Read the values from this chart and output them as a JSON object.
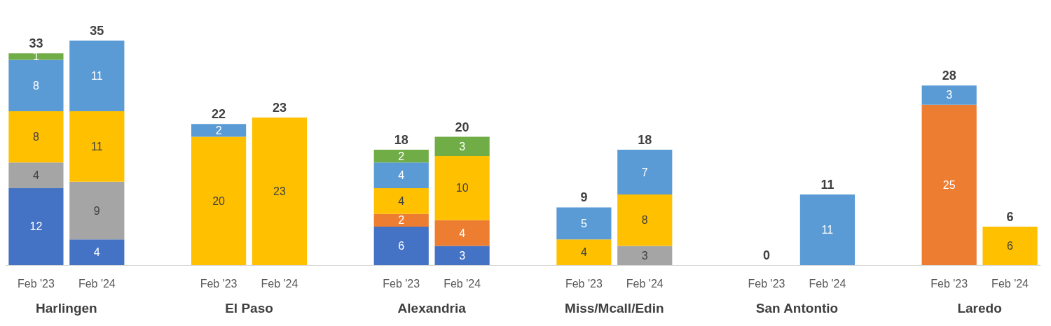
{
  "chart_data": {
    "type": "bar",
    "stacked": true,
    "data_labels": true,
    "categories": [
      "Feb '23",
      "Feb '24",
      null,
      "Feb '23",
      "Feb '24",
      null,
      "Feb '23",
      "Feb '24",
      null,
      "Feb '23",
      "Feb '24",
      null,
      "Feb '23",
      "Feb '24",
      null,
      "Feb '23",
      "Feb '24"
    ],
    "series": [
      {
        "color": "#4472c4",
        "values": [
          12,
          4,
          null,
          null,
          null,
          null,
          6,
          3,
          null,
          null,
          null,
          null,
          null,
          null,
          null,
          null,
          null
        ]
      },
      {
        "color": "#ed7d31",
        "values": [
          null,
          null,
          null,
          null,
          null,
          null,
          2,
          4,
          null,
          null,
          null,
          null,
          null,
          null,
          null,
          25,
          null
        ]
      },
      {
        "color": "#a5a5a5",
        "values": [
          4,
          9,
          null,
          null,
          null,
          null,
          null,
          null,
          null,
          null,
          3,
          null,
          null,
          null,
          null,
          null,
          null
        ]
      },
      {
        "color": "#ffc000",
        "values": [
          8,
          11,
          null,
          20,
          23,
          null,
          4,
          10,
          null,
          4,
          8,
          null,
          null,
          null,
          null,
          null,
          6
        ]
      },
      {
        "color": "#5b9bd5",
        "values": [
          8,
          11,
          null,
          2,
          null,
          null,
          4,
          null,
          null,
          5,
          7,
          null,
          null,
          11,
          null,
          3,
          null
        ]
      },
      {
        "color": "#70ad47",
        "values": [
          1,
          null,
          null,
          null,
          null,
          null,
          2,
          3,
          null,
          null,
          null,
          null,
          null,
          null,
          null,
          null,
          null
        ]
      }
    ],
    "totals": [
      "33",
      "35",
      null,
      "22",
      "23",
      null,
      "18",
      "20",
      null,
      "9",
      "18",
      null,
      "0",
      "11",
      null,
      "28",
      "6"
    ],
    "annotations": [
      "Harlingen",
      "El Paso",
      "Alexandria",
      "Miss/Mcall/Edin",
      "San Antontio",
      "Laredo"
    ]
  }
}
